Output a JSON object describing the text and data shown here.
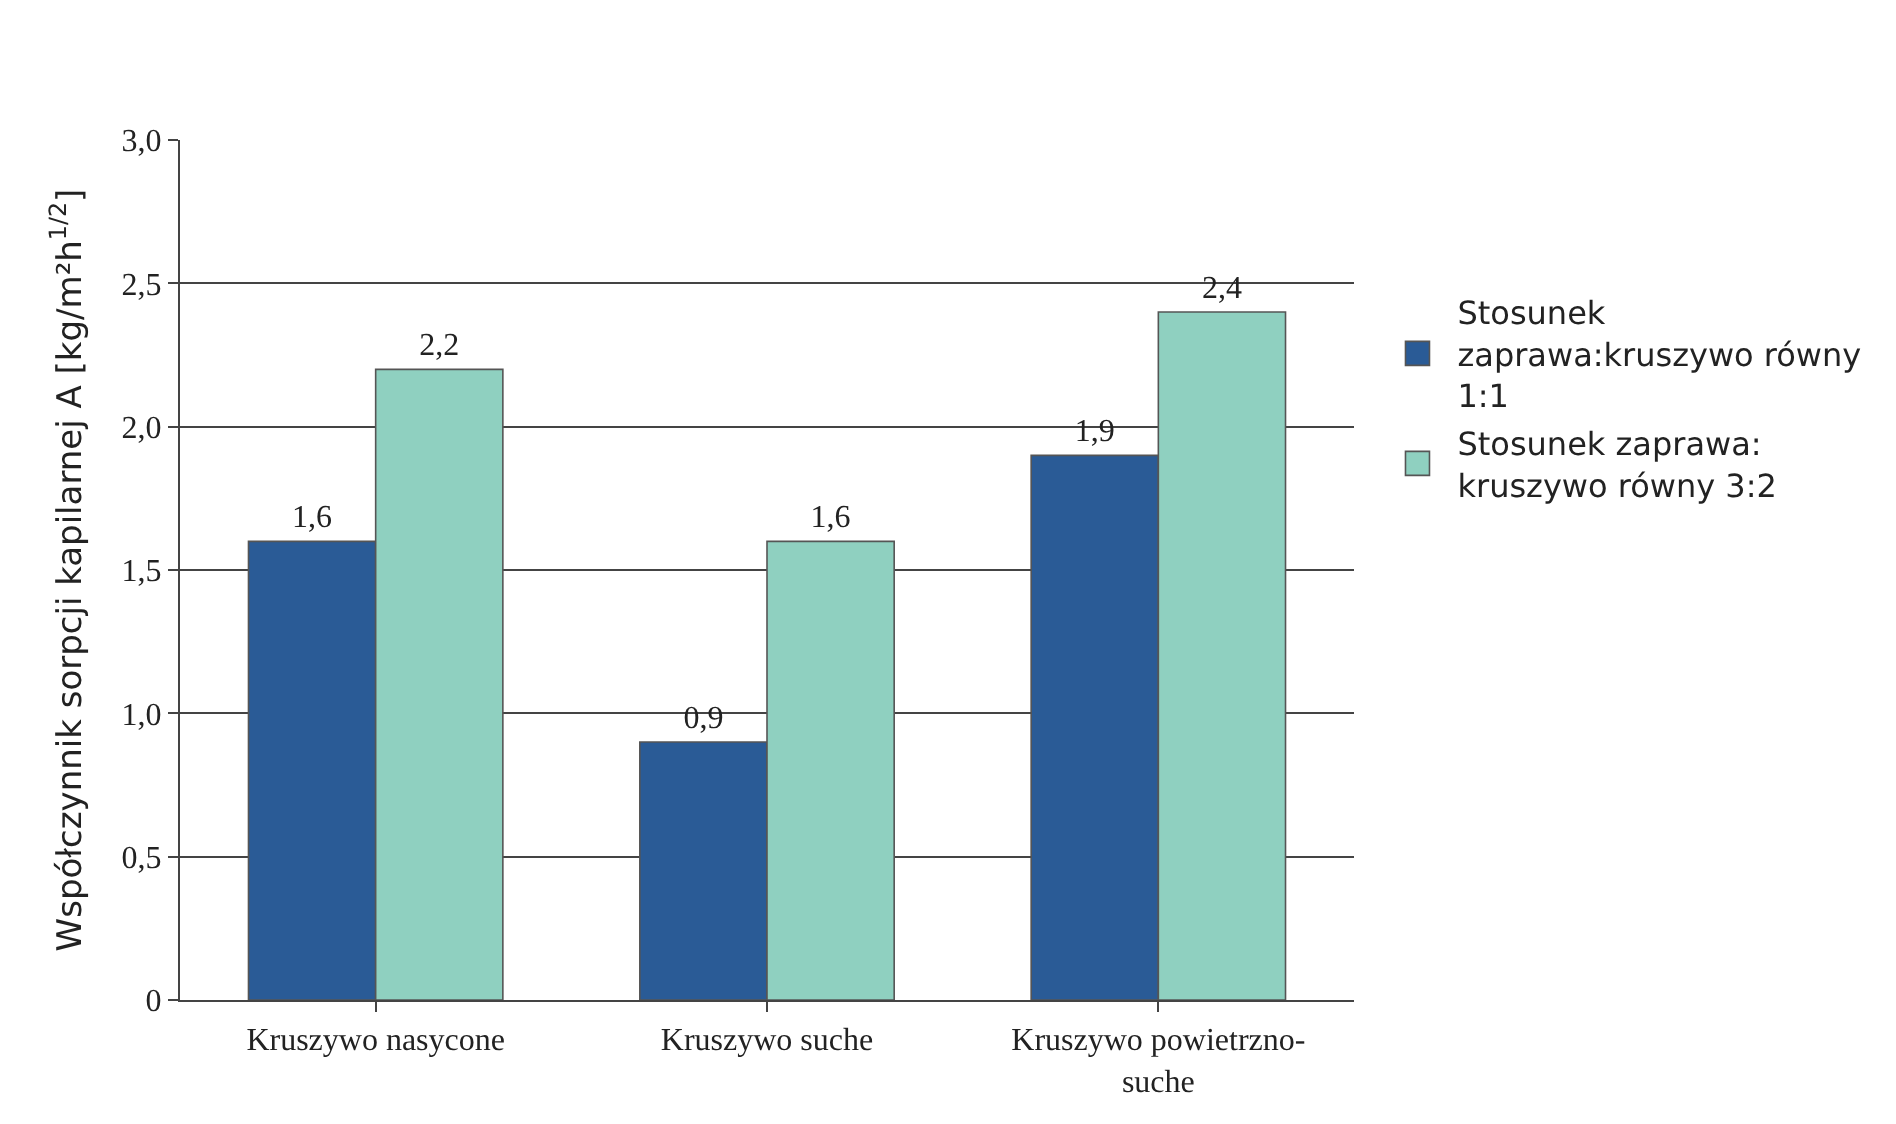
{
  "chart_data": {
    "type": "bar",
    "ylabel": "Współczynnik sorpcji kapilarnej A [kg/m²h$^{1/2}$]",
    "categories": [
      "Kruszywo nasycone",
      "Kruszywo suche",
      "Kruszywo powietrzno-suche"
    ],
    "series": [
      {
        "name": "Stosunek zaprawa:kruszywo równy 1:1",
        "color": "#2a5b96",
        "values": [
          1.6,
          0.9,
          1.9
        ],
        "value_labels": [
          "1,6",
          "0,9",
          "1,9"
        ]
      },
      {
        "name": "Stosunek zaprawa: kruszywo równy 3:2",
        "color": "#8fd0c0",
        "values": [
          2.2,
          1.6,
          2.4
        ],
        "value_labels": [
          "2,2",
          "1,6",
          "2,4"
        ]
      }
    ],
    "ylim": [
      0,
      3.0
    ],
    "yticks": [
      {
        "value": 0,
        "label": "0"
      },
      {
        "value": 0.5,
        "label": "0,5"
      },
      {
        "value": 1.0,
        "label": "1,0"
      },
      {
        "value": 1.5,
        "label": "1,5"
      },
      {
        "value": 2.0,
        "label": "2,0"
      },
      {
        "value": 2.5,
        "label": "2,5"
      },
      {
        "value": 3.0,
        "label": "3,0"
      }
    ],
    "grid": "y",
    "legend": "right"
  }
}
